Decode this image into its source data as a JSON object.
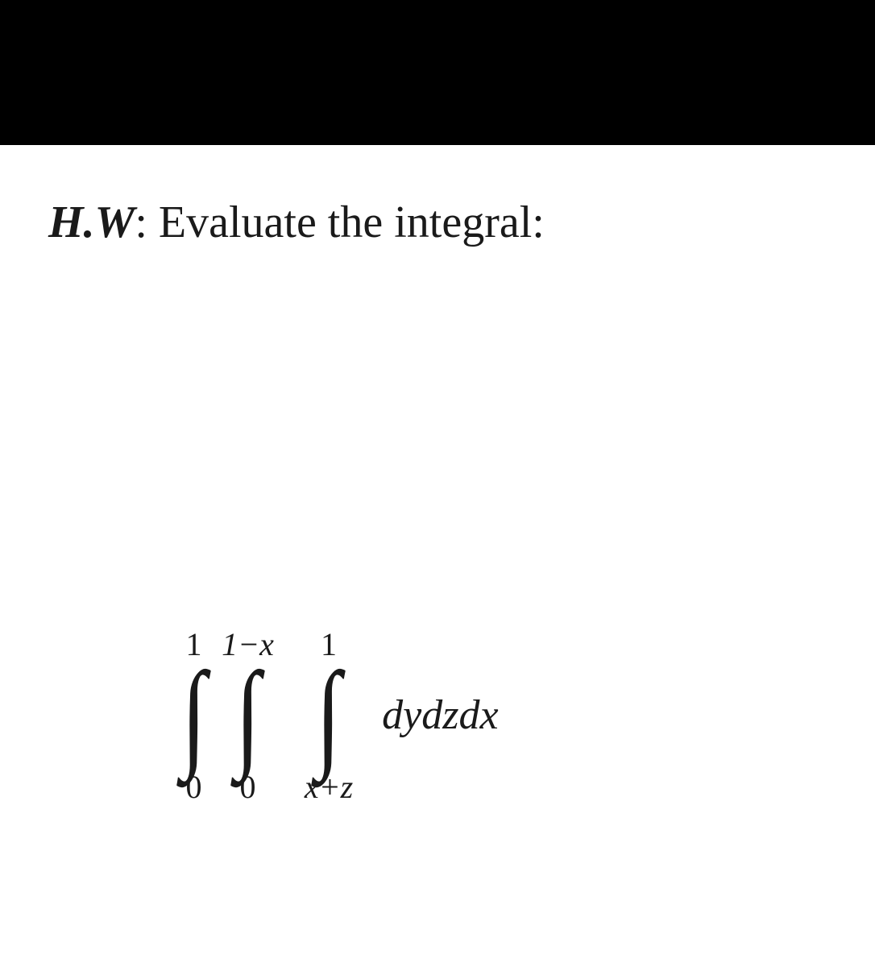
{
  "heading": {
    "hw_label": "H.W",
    "title_text": ": Evaluate the integral:"
  },
  "integral": {
    "int1": {
      "upper": "1",
      "lower": "0"
    },
    "int2": {
      "upper": "1−x",
      "lower": "0"
    },
    "int3": {
      "upper": "1",
      "lower": "x+z"
    },
    "integrand": "dydzdx"
  },
  "styling": {
    "background_color": "#ffffff",
    "text_color": "#1a1a1a",
    "black_bar_color": "#000000",
    "heading_fontsize": 56,
    "limit_fontsize": 40,
    "integral_sign_fontsize": 150,
    "integrand_fontsize": 52,
    "font_family": "Times New Roman"
  }
}
